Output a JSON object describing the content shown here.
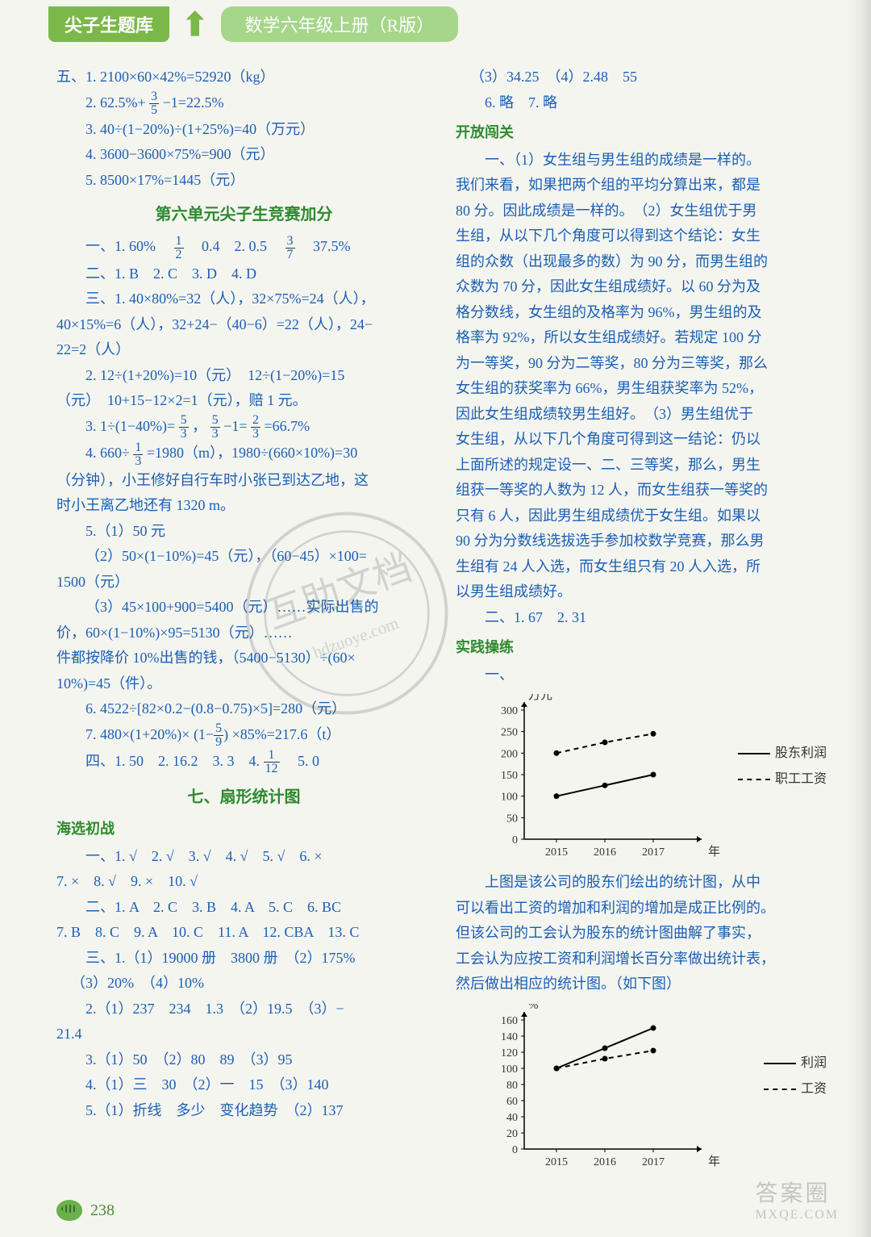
{
  "header": {
    "left": "尖子生题库",
    "right": "数学六年级上册（R版）"
  },
  "left_col": {
    "five_label": "五、",
    "five_1": "1. 2100×60×42%=52920（kg）",
    "five_2_a": "2. 62.5%+",
    "five_2_b": "−1=22.5%",
    "five_3": "3. 40÷(1−20%)÷(1+25%)=40（万元）",
    "five_4": "4. 3600−3600×75%=900（元）",
    "five_5": "5. 8500×17%=1445（元）",
    "title_unit6": "第六单元尖子生竞赛加分",
    "one_a": "一、1. 60%　",
    "one_b": "　0.4　2. 0.5　",
    "one_c": "　37.5%",
    "two": "二、1. B　2. C　3. D　4. D",
    "three_1": "三、1. 40×80%=32（人），32×75%=24（人），",
    "three_1b": "40×15%=6（人），32+24−（40−6）=22（人），24−",
    "three_1c": "22=2（人）",
    "three_2a": "2. 12÷(1+20%)=10（元）　12÷(1−20%)=15",
    "three_2b": "（元）　10+15−12×2=1（元），赔 1 元。",
    "three_3a": "3. 1÷(1−40%)= ",
    "three_3b": "，",
    "three_3c": "−1=",
    "three_3d": "=66.7%",
    "three_4a": "4. 660÷",
    "three_4b": "=1980（m），1980÷(660×10%)=30",
    "three_4c": "（分钟），小王修好自行车时小张已到达乙地，这",
    "three_4d": "时小王离乙地还有 1320 m。",
    "three_5_1": "5.（1）50 元",
    "three_5_2": "（2）50×(1−10%)=45（元），（60−45）×100=",
    "three_5_2b": "1500（元）",
    "three_5_3a": "（3）45×100+900=5400（元）……实际出售的",
    "three_5_3b": "价，60×(1−10%)×95=5130（元）……",
    "three_5_3c": "件都按降价 10%出售的钱，（5400−5130）÷(60×",
    "three_5_3d": "10%)=45（件）。",
    "three_6": "6. 4522÷[82×0.2−(0.8−0.75)×5]=280（元）",
    "three_7a": "7. 480×(1+20%)×",
    "three_7b": "×85%=217.6（t）",
    "four_a": "四、1. 50　2. 16.2　3. 3　4. ",
    "four_b": "　5. 0",
    "title_7": "七、扇形统计图",
    "haixuan": "海选初战",
    "h1": "一、1. √　2. √　3. √　4. √　5. √　6. ×",
    "h1b": "7. ×　8. √　9. ×　10. √",
    "h2": "二、1. A　2. C　3. B　4. A　5. C　6. BC",
    "h2b": "7. B　8. C　9. A　10. C　11. A　12. CBA　13. C",
    "h3_1": "三、1.（1）19000 册　3800 册　（2）175%",
    "h3_1b": "（3）20%　（4）10%",
    "h3_2": "2.（1）237　234　1.3　（2）19.5　（3）−",
    "h3_2b": "21.4",
    "h3_3": "3.（1）50　（2）80　89　（3）95",
    "h3_4": "4.（1）三　30　（2）一　15　（3）140",
    "h3_5": "5.（1）折线　多少　变化趋势　（2）137"
  },
  "right_col": {
    "top": "（3）34.25　（4）2.48　55",
    "top2": "6. 略　7. 略",
    "kfjg": "开放闯关",
    "p1": "一、（1）女生组与男生组的成绩是一样的。",
    "p2": "我们来看，如果把两个组的平均分算出来，都是",
    "p3": "80 分。因此成绩是一样的。　（2）女生组优于男",
    "p4": "生组，从以下几个角度可以得到这个结论：女生",
    "p5": "组的众数（出现最多的数）为 90 分，而男生组的",
    "p6": "众数为 70 分，因此女生组成绩好。以 60 分为及",
    "p7": "格分数线，女生组的及格率为 96%，男生组的及",
    "p8": "格率为 92%，所以女生组成绩好。若规定 100 分",
    "p9": "为一等奖，90 分为二等奖，80 分为三等奖，那么",
    "p10": "女生组的获奖率为 66%，男生组获奖率为 52%，",
    "p11": "因此女生组成绩较男生组好。　（3）男生组优于",
    "p12": "女生组，从以下几个角度可得到这一结论：仍以",
    "p13": "上面所述的规定设一、二、三等奖，那么，男生",
    "p14": "组获一等奖的人数为 12 人，而女生组获一等奖的",
    "p15": "只有 6 人，因此男生组成绩优于女生组。如果以",
    "p16": "90 分为分数线选拔选手参加校数学竞赛，那么男",
    "p17": "生组有 24 人入选，而女生组只有 20 人入选，所",
    "p18": "以男生组成绩好。",
    "p19": "二、1. 67　2. 31",
    "sjcl": "实践操练",
    "chart1": {
      "ylabel": "万元",
      "xlabel": "年",
      "yticks": [
        "0",
        "50",
        "100",
        "150",
        "200",
        "250",
        "300"
      ],
      "xticks": [
        "2015",
        "2016",
        "2017"
      ],
      "series1_name": "股东利润",
      "series2_name": "职工工资",
      "series1": [
        100,
        125,
        150
      ],
      "series2": [
        200,
        225,
        245
      ],
      "line_color": "#000000",
      "bg": "#ffffff"
    },
    "mid1": "上图是该公司的股东们绘出的统计图，从中",
    "mid2": "可以看出工资的增加和利润的增加是成正比例的。",
    "mid3": "但该公司的工会认为股东的统计图曲解了事实，",
    "mid4": "工会认为应按工资和利润增长百分率做出统计表，",
    "mid5": "然后做出相应的统计图。（如下图）",
    "chart2": {
      "ylabel": "%",
      "xlabel": "年",
      "yticks": [
        "0",
        "20",
        "40",
        "60",
        "80",
        "100",
        "120",
        "140",
        "160"
      ],
      "xticks": [
        "2015",
        "2016",
        "2017"
      ],
      "series1_name": "利润",
      "series2_name": "工资",
      "series1": [
        100,
        125,
        150
      ],
      "series2": [
        100,
        112,
        122
      ],
      "line_color": "#000000"
    }
  },
  "footer": {
    "page": "238"
  },
  "fracs": {
    "three_fifths_n": "3",
    "three_fifths_d": "5",
    "one_half_n": "1",
    "one_half_d": "2",
    "three_sevenths_n": "3",
    "three_sevenths_d": "7",
    "five_thirds_n": "5",
    "five_thirds_d": "3",
    "two_thirds_n": "2",
    "two_thirds_d": "3",
    "one_third_n": "1",
    "one_third_d": "3",
    "one_ninth_ish_n": "5",
    "one_ninth_ish_d": "9",
    "one_twelfth_n": "1",
    "one_twelfth_d": "12"
  }
}
